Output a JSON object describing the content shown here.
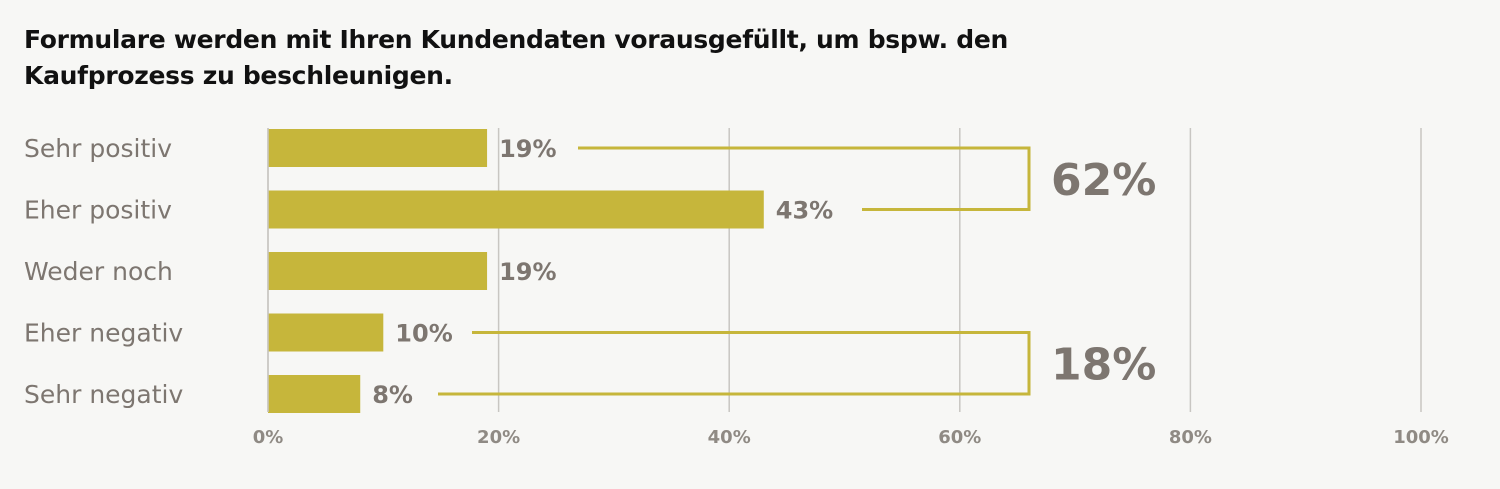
{
  "title": {
    "line1": "Formulare werden mit Ihren Kundendaten vorausgefüllt, um bspw. den",
    "line2": "Kaufprozess zu beschleunigen."
  },
  "colors": {
    "bar": "#c6b63b",
    "bracket": "#c6b63b",
    "grid": "#c8c6c2",
    "text": "#7d7670"
  },
  "chart_data": {
    "type": "bar",
    "orientation": "horizontal",
    "title": "Formulare werden mit Ihren Kundendaten vorausgefüllt, um bspw. den Kaufprozess zu beschleunigen.",
    "categories": [
      "Sehr positiv",
      "Eher positiv",
      "Weder noch",
      "Eher negativ",
      "Sehr negativ"
    ],
    "values": [
      19,
      43,
      19,
      10,
      8
    ],
    "value_labels": [
      "19%",
      "43%",
      "19%",
      "10%",
      "8%"
    ],
    "xlim": [
      0,
      100
    ],
    "xticks": [
      "0%",
      "20%",
      "40%",
      "60%",
      "80%",
      "100%"
    ],
    "grid": true,
    "groups": [
      {
        "label": "62%",
        "members": [
          0,
          1
        ]
      },
      {
        "label": "18%",
        "members": [
          3,
          4
        ]
      }
    ]
  }
}
